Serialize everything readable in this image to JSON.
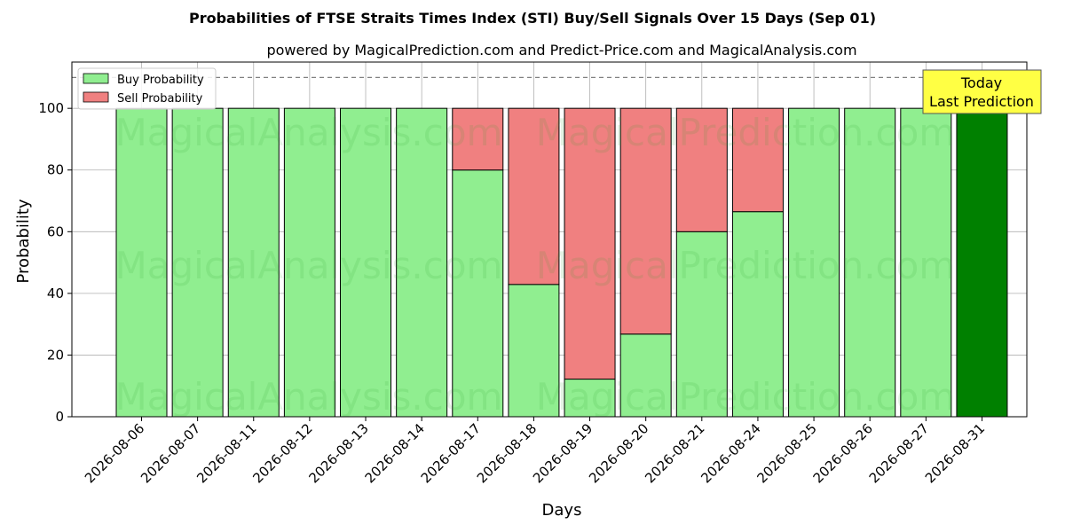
{
  "chart_data": {
    "type": "bar",
    "stacked": true,
    "title": "Probabilities of FTSE Straits Times Index (STI) Buy/Sell Signals Over 15 Days (Sep 01)",
    "subtitle": "powered by MagicalPrediction.com and Predict-Price.com and MagicalAnalysis.com",
    "xlabel": "Days",
    "ylabel": "Probability",
    "ylim": [
      0,
      115
    ],
    "yticks": [
      0,
      20,
      40,
      60,
      80,
      100
    ],
    "grid": true,
    "legend_position": "top-left",
    "reference_line": 110,
    "categories": [
      "2026-08-06",
      "2026-08-07",
      "2026-08-11",
      "2026-08-12",
      "2026-08-13",
      "2026-08-14",
      "2026-08-17",
      "2026-08-18",
      "2026-08-19",
      "2026-08-20",
      "2026-08-21",
      "2026-08-24",
      "2026-08-25",
      "2026-08-26",
      "2026-08-27",
      "2026-08-31"
    ],
    "series": [
      {
        "name": "Buy Probability",
        "color": "#90ee90",
        "values": [
          100,
          100,
          100,
          100,
          100,
          100,
          80,
          42.9,
          12.2,
          26.8,
          60,
          66.5,
          100,
          100,
          100,
          100
        ]
      },
      {
        "name": "Sell Probability",
        "color": "#f08080",
        "values": [
          0,
          0,
          0,
          0,
          0,
          0,
          20,
          57.1,
          87.8,
          73.2,
          40,
          33.5,
          0,
          0,
          0,
          0
        ]
      }
    ],
    "highlight_color": "#008000",
    "highlight_index": 15,
    "annotation": {
      "line1": "Today",
      "line2": "Last Prediction",
      "color": "#ffff44"
    },
    "watermarks": [
      "MagicalAnalysis.com",
      "MagicalPrediction.com"
    ]
  }
}
